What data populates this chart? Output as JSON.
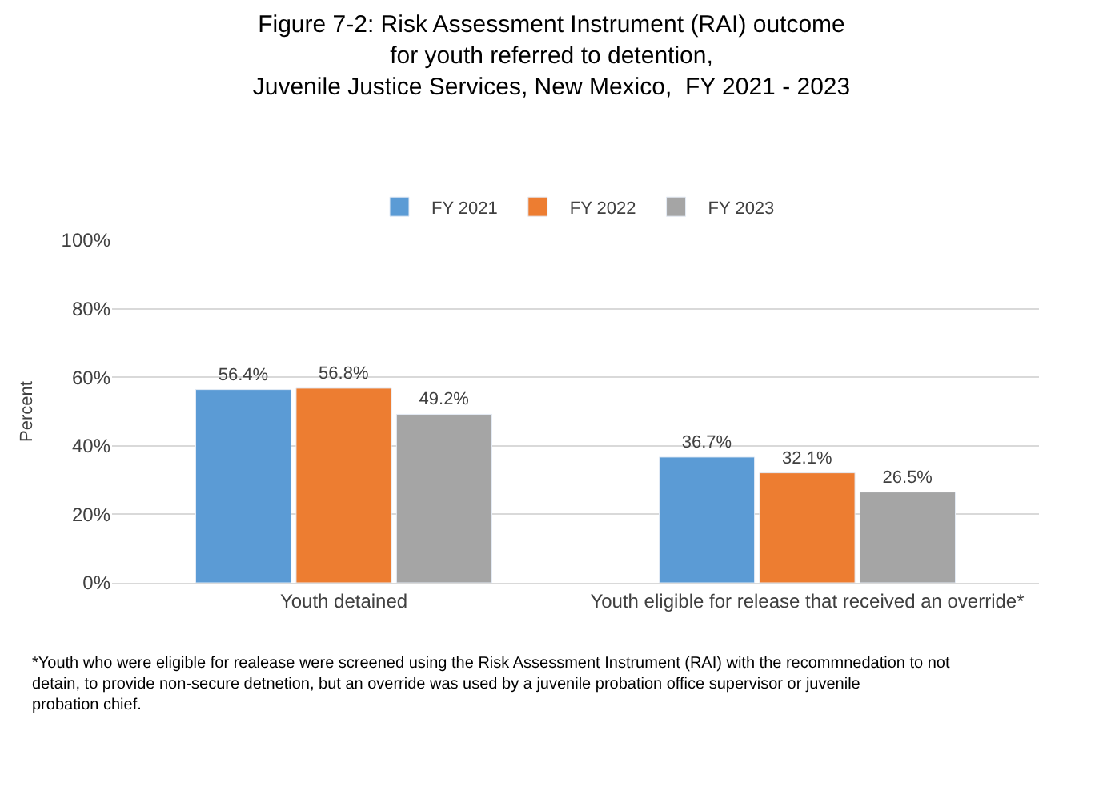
{
  "chart_data": {
    "type": "bar",
    "title": "Figure 7-2: Risk Assessment Instrument (RAI) outcome\nfor youth referred to detention,\nJuvenile Justice Services, New Mexico,  FY 2021 - 2023",
    "ylabel": "Percent",
    "categories": [
      "Youth detained",
      "Youth eligible for release that received an override*"
    ],
    "series": [
      {
        "name": "FY 2021",
        "color": "#5b9bd5",
        "values": [
          56.4,
          36.7
        ],
        "value_labels": [
          "56.4%",
          "36.7%"
        ]
      },
      {
        "name": "FY 2022",
        "color": "#ed7d31",
        "values": [
          56.8,
          32.1
        ],
        "value_labels": [
          "56.8%",
          "32.1%"
        ]
      },
      {
        "name": "FY 2023",
        "color": "#a5a5a5",
        "values": [
          49.2,
          26.5
        ],
        "value_labels": [
          "49.2%",
          "26.5%"
        ]
      }
    ],
    "ylim": [
      0,
      100
    ],
    "yticks": [
      {
        "value": 0,
        "label": "0%"
      },
      {
        "value": 20,
        "label": "20%"
      },
      {
        "value": 40,
        "label": "40%"
      },
      {
        "value": 60,
        "label": "60%"
      },
      {
        "value": 80,
        "label": "80%"
      },
      {
        "value": 100,
        "label": "100%"
      }
    ],
    "grid": "y",
    "legend": "top",
    "annotations": [
      "*Youth who were eligible for realease were screened using the Risk Assessment Instrument (RAI) with the recommnedation to not detain, to provide non-secure detnetion, but an override was used by a juvenile probation office supervisor or juvenile probation chief."
    ]
  }
}
